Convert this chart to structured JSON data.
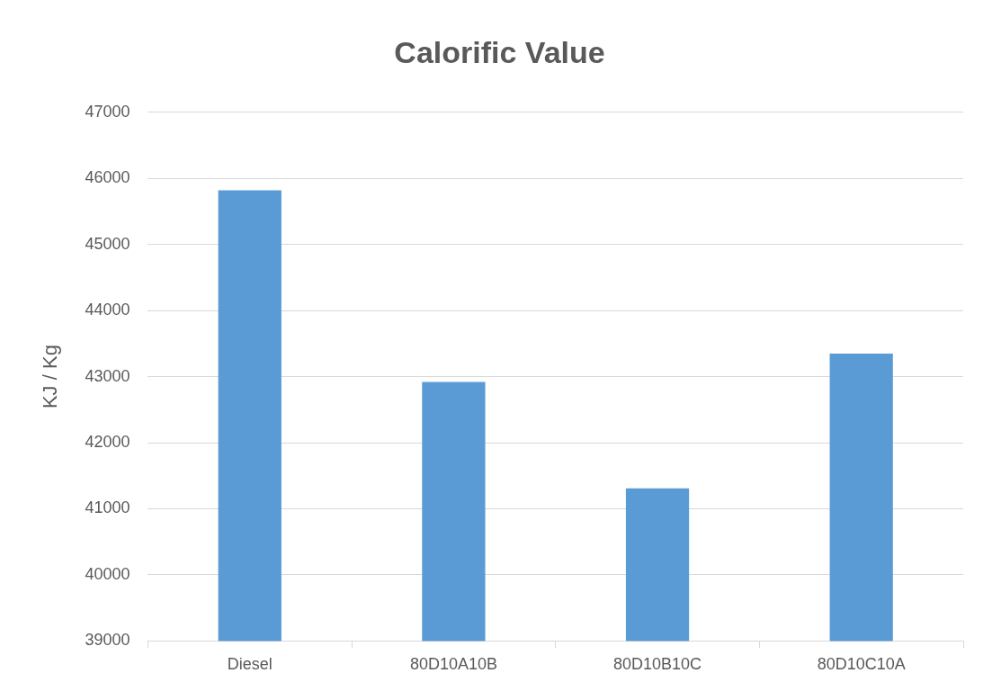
{
  "chart_data": {
    "type": "bar",
    "title": "Calorific Value",
    "ylabel": "KJ / Kg",
    "categories": [
      "Diesel",
      "80D10A10B",
      "80D10B10C",
      "80D10C10A"
    ],
    "values": [
      45820,
      42920,
      41310,
      43350
    ],
    "color": "#5b9bd5",
    "ylim": [
      39000,
      47000
    ],
    "yticks": [
      39000,
      40000,
      41000,
      42000,
      43000,
      44000,
      45000,
      46000,
      47000
    ],
    "grid": "y"
  }
}
